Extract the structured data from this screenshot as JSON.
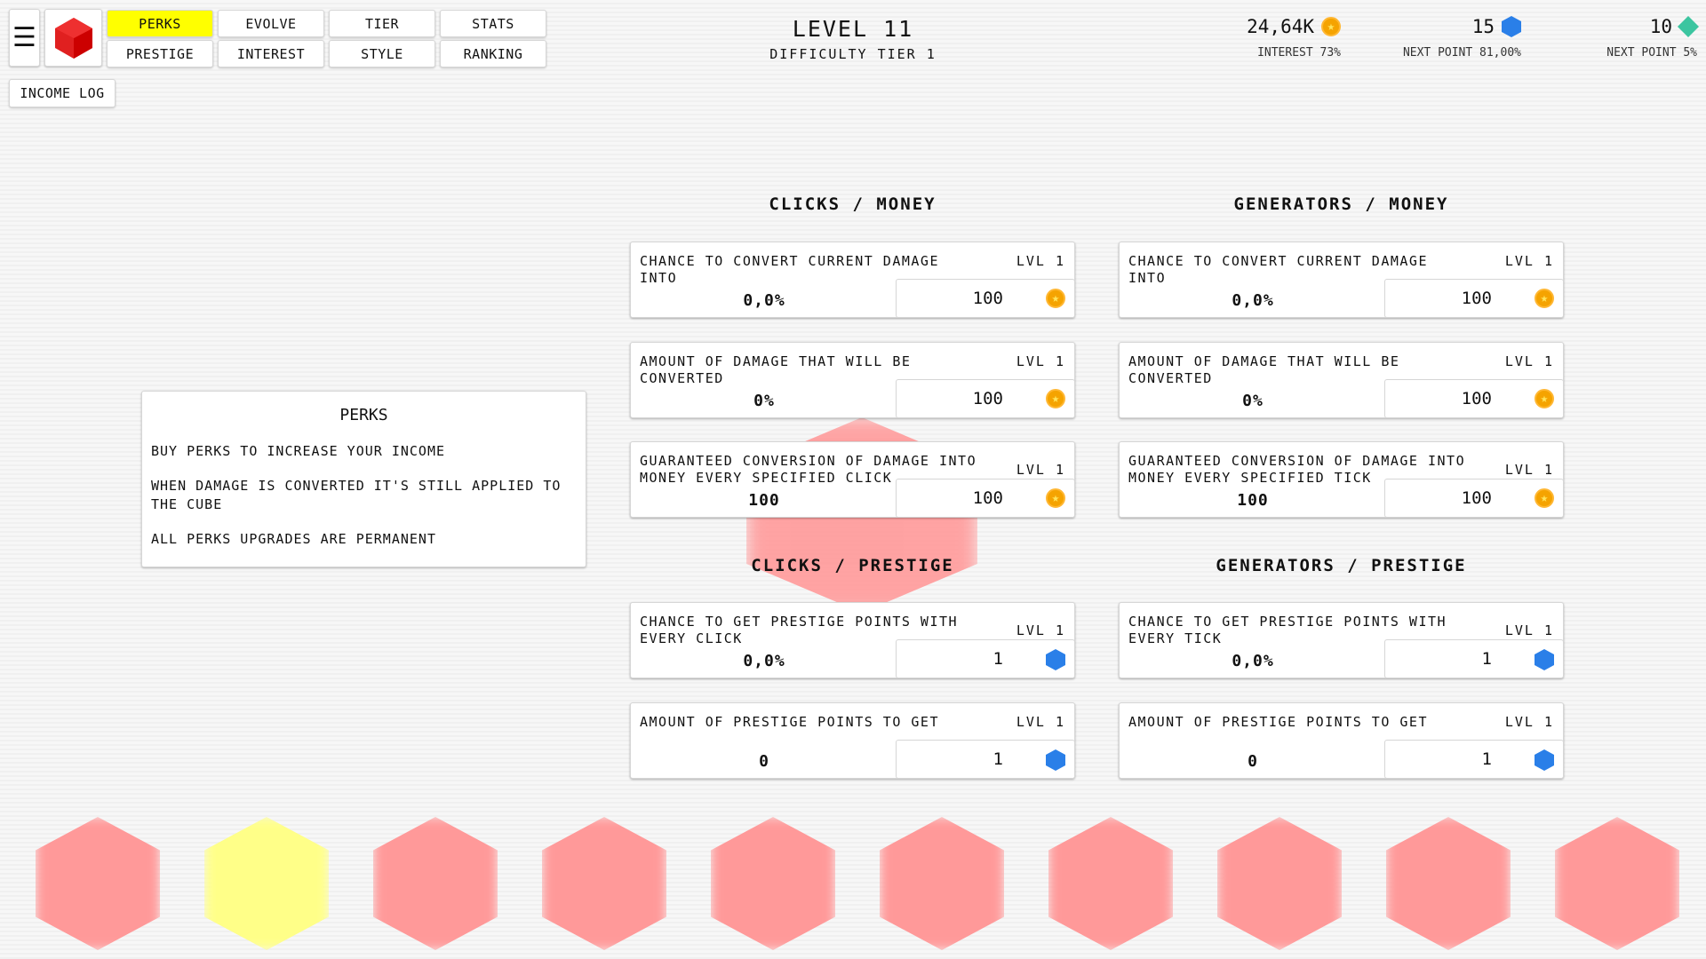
{
  "nav": {
    "tabs": [
      {
        "label": "PERKS",
        "active": true
      },
      {
        "label": "EVOLVE"
      },
      {
        "label": "TIER"
      },
      {
        "label": "STATS"
      },
      {
        "label": "PRESTIGE"
      },
      {
        "label": "INTEREST"
      },
      {
        "label": "STYLE"
      },
      {
        "label": "RANKING"
      }
    ],
    "income_log": "INCOME LOG"
  },
  "header": {
    "level": "LEVEL 11",
    "difficulty": "DIFFICULTY TIER 1"
  },
  "resources": [
    {
      "value": "24,64K",
      "sub": "INTEREST 73%",
      "icon": "coin-icon"
    },
    {
      "value": "15",
      "sub": "NEXT POINT 81,00%",
      "icon": "blue-gem-icon"
    },
    {
      "value": "10",
      "sub": "NEXT POINT 5%",
      "icon": "green-diamond-icon"
    }
  ],
  "info": {
    "title": "PERKS",
    "lines": [
      "BUY PERKS TO INCREASE YOUR INCOME",
      "WHEN DAMAGE IS CONVERTED IT'S STILL APPLIED TO THE CUBE",
      "ALL PERKS UPGRADES ARE PERMANENT"
    ]
  },
  "sections": {
    "clicks_money": {
      "title": "CLICKS / MONEY",
      "cards": [
        {
          "title": "CHANCE TO CONVERT CURRENT DAMAGE INTO",
          "level": "LVL 1",
          "value": "0,0%",
          "price": "100"
        },
        {
          "title": "AMOUNT OF DAMAGE THAT WILL BE CONVERTED",
          "level": "LVL 1",
          "value": "0%",
          "price": "100"
        },
        {
          "title": "GUARANTEED CONVERSION OF DAMAGE INTO MONEY EVERY SPECIFIED CLICK",
          "level": "LVL 1",
          "value": "100",
          "price": "100"
        }
      ]
    },
    "generators_money": {
      "title": "GENERATORS / MONEY",
      "cards": [
        {
          "title": "CHANCE TO CONVERT CURRENT DAMAGE INTO",
          "level": "LVL 1",
          "value": "0,0%",
          "price": "100"
        },
        {
          "title": "AMOUNT OF DAMAGE THAT WILL BE CONVERTED",
          "level": "LVL 1",
          "value": "0%",
          "price": "100"
        },
        {
          "title": "GUARANTEED CONVERSION OF DAMAGE INTO MONEY EVERY SPECIFIED TICK",
          "level": "LVL 1",
          "value": "100",
          "price": "100"
        }
      ]
    },
    "clicks_prestige": {
      "title": "CLICKS / PRESTIGE",
      "cards": [
        {
          "title": "CHANCE TO GET PRESTIGE POINTS WITH EVERY CLICK",
          "level": "LVL 1",
          "value": "0,0%",
          "price": "1"
        },
        {
          "title": "AMOUNT OF PRESTIGE POINTS TO GET",
          "level": "LVL 1",
          "value": "0",
          "price": "1"
        }
      ]
    },
    "generators_prestige": {
      "title": "GENERATORS / PRESTIGE",
      "cards": [
        {
          "title": "CHANCE TO GET PRESTIGE POINTS WITH EVERY TICK",
          "level": "LVL 1",
          "value": "0,0%",
          "price": "1"
        },
        {
          "title": "AMOUNT OF PRESTIGE POINTS TO GET",
          "level": "LVL 1",
          "value": "0",
          "price": "1"
        }
      ]
    }
  },
  "colors": {
    "active_tab": "#ffff00",
    "cube": "#e02020",
    "coin": "#f5a300",
    "gem": "#2a7fe8",
    "diamond": "#3cc5a0"
  }
}
